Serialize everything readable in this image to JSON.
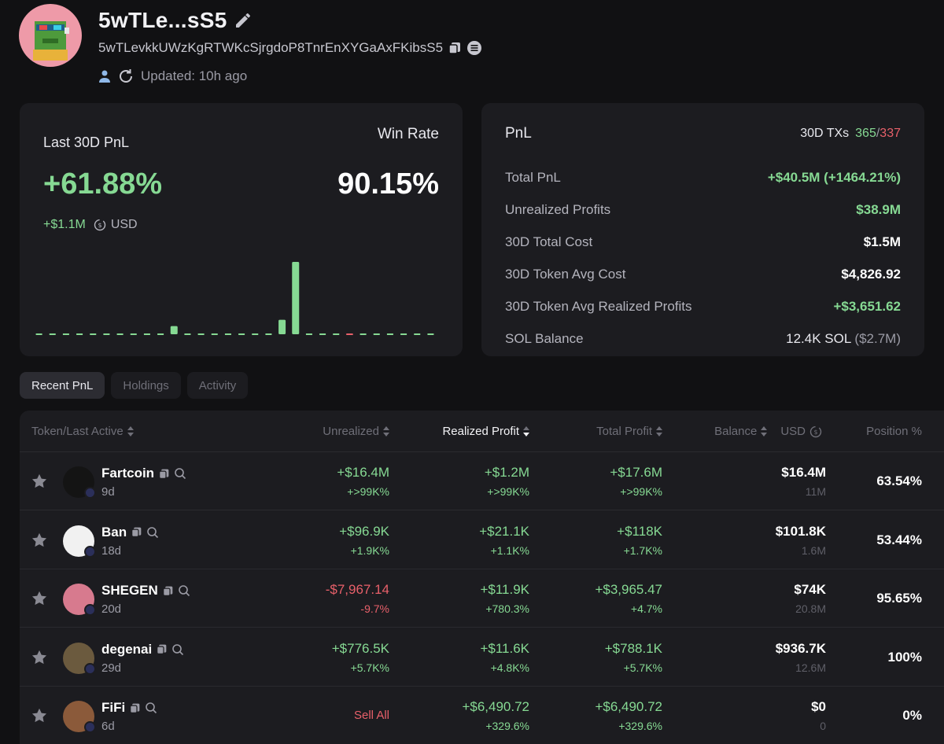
{
  "profile": {
    "name": "5wTLe...sS5",
    "address": "5wTLevkkUWzKgRTWKcSjrgdoP8TnrEnXYGaAxFKibsS5",
    "updated": "Updated: 10h ago"
  },
  "summary": {
    "pnl_title": "Last 30D PnL",
    "pnl_value": "+61.88%",
    "pnl_usd": "+$1.1M",
    "usd_label": "USD",
    "winrate_title": "Win Rate",
    "winrate_value": "90.15%"
  },
  "chart_data": {
    "type": "bar",
    "title": "",
    "colors": {
      "positive": "#86d993",
      "negative": "#e8606a",
      "zero": "#86d993"
    },
    "values": [
      0,
      0,
      0,
      0,
      0,
      0,
      0,
      0,
      0,
      0,
      0.9,
      0,
      0,
      0,
      0,
      0,
      0,
      0,
      1.6,
      8.0,
      0,
      0,
      0,
      -0.1,
      0,
      0,
      0,
      0,
      0,
      0
    ]
  },
  "stats": {
    "title": "PnL",
    "tx_label": "30D TXs",
    "tx_buy": "365",
    "tx_sep": "/",
    "tx_sell": "337",
    "rows": [
      {
        "label": "Total PnL",
        "value": "+$40.5M (+1464.21%)"
      },
      {
        "label": "Unrealized Profits",
        "value": "$38.9M"
      },
      {
        "label": "30D Total Cost",
        "value": "$1.5M"
      },
      {
        "label": "30D Token Avg Cost",
        "value": "$4,826.92"
      },
      {
        "label": "30D Token Avg Realized Profits",
        "value": "+$3,651.62"
      },
      {
        "label": "SOL Balance",
        "value": "12.4K SOL",
        "extra": "($2.7M)"
      }
    ]
  },
  "tabs": [
    "Recent PnL",
    "Holdings",
    "Activity"
  ],
  "table": {
    "headers": {
      "token": "Token/Last Active",
      "unrealized": "Unrealized",
      "realized": "Realized Profit",
      "total": "Total Profit",
      "balance": "Balance",
      "usd": "USD",
      "position": "Position %"
    },
    "rows": [
      {
        "name": "Fartcoin",
        "age": "9d",
        "unrealized": "+$16.4M",
        "unrealized_pct": "+>99K%",
        "realized": "+$1.2M",
        "realized_pct": "+>99K%",
        "total": "+$17.6M",
        "total_pct": "+>99K%",
        "balance_usd": "$16.4M",
        "balance_amt": "11M",
        "position": "63.54%",
        "avatar_color": "#141414"
      },
      {
        "name": "Ban",
        "age": "18d",
        "unrealized": "+$96.9K",
        "unrealized_pct": "+1.9K%",
        "realized": "+$21.1K",
        "realized_pct": "+1.1K%",
        "total": "+$118K",
        "total_pct": "+1.7K%",
        "balance_usd": "$101.8K",
        "balance_amt": "1.6M",
        "position": "53.44%",
        "avatar_color": "#f1f1f1"
      },
      {
        "name": "SHEGEN",
        "age": "20d",
        "unrealized": "-$7,967.14",
        "unrealized_pct": "-9.7%",
        "realized": "+$11.9K",
        "realized_pct": "+780.3%",
        "total": "+$3,965.47",
        "total_pct": "+4.7%",
        "balance_usd": "$74K",
        "balance_amt": "20.8M",
        "position": "95.65%",
        "avatar_color": "#d77a8e"
      },
      {
        "name": "degenai",
        "age": "29d",
        "unrealized": "+$776.5K",
        "unrealized_pct": "+5.7K%",
        "realized": "+$11.6K",
        "realized_pct": "+4.8K%",
        "total": "+$788.1K",
        "total_pct": "+5.7K%",
        "balance_usd": "$936.7K",
        "balance_amt": "12.6M",
        "position": "100%",
        "avatar_color": "#6b5a3e"
      },
      {
        "name": "FiFi",
        "age": "6d",
        "unrealized": "Sell All",
        "unrealized_pct": "",
        "realized": "+$6,490.72",
        "realized_pct": "+329.6%",
        "total": "+$6,490.72",
        "total_pct": "+329.6%",
        "balance_usd": "$0",
        "balance_amt": "0",
        "position": "0%",
        "avatar_color": "#8b5a3a"
      }
    ]
  }
}
